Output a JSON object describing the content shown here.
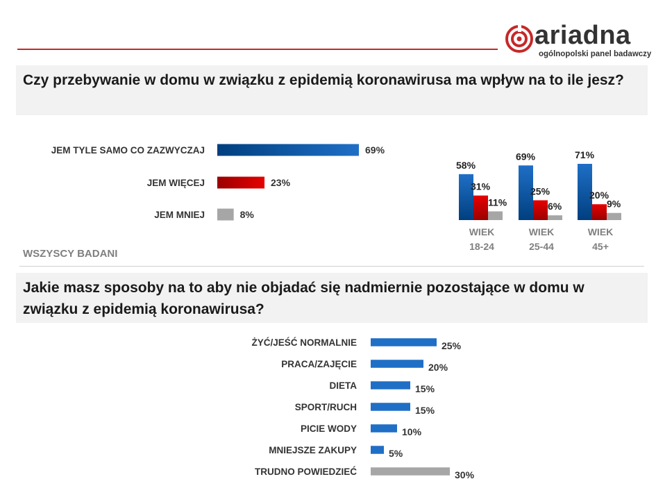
{
  "logo": {
    "name": "ariadna",
    "tagline": "ogólnopolski panel badawczy"
  },
  "question1": {
    "text": "Czy przebywanie w domu w związku z epidemią koronawirusa ma wpływ na to ile jesz?"
  },
  "question2": {
    "text": "Jakie masz sposoby na to aby nie objadać się nadmiernie pozostające w domu w związku z epidemią koronawirusa?"
  },
  "all_respondents_label": "WSZYSCY BADANI",
  "colors": {
    "blue": "#1f6fc6",
    "blue_dark": "#003f7f",
    "red": "#e60000",
    "red_dark": "#9a0000",
    "gray": "#a6a6a6",
    "brand_red": "#c62828"
  },
  "chart_data": [
    {
      "id": "overall",
      "type": "bar",
      "orientation": "horizontal",
      "title": "WSZYSCY BADANI",
      "categories": [
        "JEM TYLE SAMO CO ZAZWYCZAJ",
        "JEM WIĘCEJ",
        "JEM MNIEJ"
      ],
      "values": [
        69,
        23,
        8
      ],
      "value_labels": [
        "69%",
        "23%",
        "8%"
      ],
      "colors": [
        "blue",
        "red",
        "gray"
      ],
      "unit": "%"
    },
    {
      "id": "by_age",
      "type": "bar",
      "orientation": "vertical",
      "categories": [
        "WIEK 18-24",
        "WIEK 25-44",
        "WIEK 45+"
      ],
      "category_lines": [
        [
          "WIEK",
          "18-24"
        ],
        [
          "WIEK",
          "25-44"
        ],
        [
          "WIEK",
          "45+"
        ]
      ],
      "series": [
        {
          "name": "JEM TYLE SAMO CO ZAZWYCZAJ",
          "color": "blue",
          "values": [
            58,
            69,
            71
          ],
          "labels": [
            "58%",
            "69%",
            "71%"
          ]
        },
        {
          "name": "JEM WIĘCEJ",
          "color": "red",
          "values": [
            31,
            25,
            20
          ],
          "labels": [
            "31%",
            "25%",
            "20%"
          ]
        },
        {
          "name": "JEM MNIEJ",
          "color": "gray",
          "values": [
            11,
            6,
            9
          ],
          "labels": [
            "11%",
            "6%",
            "9%"
          ]
        }
      ],
      "unit": "%"
    },
    {
      "id": "methods",
      "type": "bar",
      "orientation": "horizontal",
      "categories": [
        "ŻYĆ/JEŚĆ NORMALNIE",
        "PRACA/ZAJĘCIE",
        "DIETA",
        "SPORT/RUCH",
        "PICIE WODY",
        "MNIEJSZE ZAKUPY",
        "TRUDNO POWIEDZIEĆ"
      ],
      "values": [
        25,
        20,
        15,
        15,
        10,
        5,
        30
      ],
      "value_labels": [
        "25%",
        "20%",
        "15%",
        "15%",
        "10%",
        "5%",
        "30%"
      ],
      "colors": [
        "blue",
        "blue",
        "blue",
        "blue",
        "blue",
        "blue",
        "gray"
      ],
      "unit": "%"
    }
  ]
}
